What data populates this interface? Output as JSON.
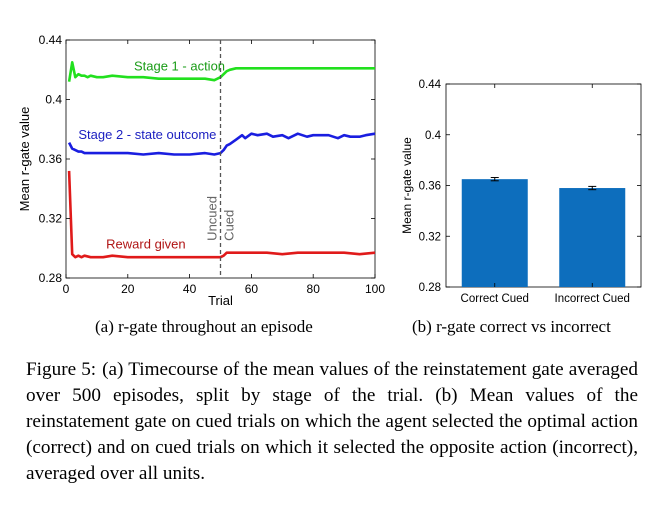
{
  "figure": {
    "label": "Figure 5:",
    "caption": "(a) Timecourse of the mean values of the reinstatement gate averaged over 500 episodes, split by stage of the trial. (b) Mean values of the reinstatement gate on cued trials on which the agent selected the optimal action (correct) and on cued trials on which it selected the opposite action (incorrect), averaged over all units."
  },
  "subfigures": {
    "a": {
      "caption": "(a) r-gate throughout an episode"
    },
    "b": {
      "caption": "(b) r-gate correct vs incorrect"
    }
  },
  "chart_data": [
    {
      "type": "line",
      "xlabel": "Trial",
      "ylabel": "Mean r-gate value",
      "xlim": [
        0,
        100
      ],
      "ylim": [
        0.28,
        0.44
      ],
      "xticks": [
        0,
        20,
        40,
        60,
        80,
        100
      ],
      "yticks": [
        0.28,
        0.32,
        0.36,
        0.4,
        0.44
      ],
      "ytick_labels": [
        "0.28",
        "0.32",
        "0.36",
        "0.4",
        "0.44"
      ],
      "grid": false,
      "divider": {
        "x": 50,
        "labels": [
          "Uncued",
          "Cued"
        ]
      },
      "series": [
        {
          "name": "Stage 1 - action",
          "color": "#22e01e",
          "x": [
            1,
            2,
            3,
            4,
            5,
            6,
            7,
            8,
            10,
            12,
            15,
            20,
            25,
            30,
            35,
            40,
            45,
            48,
            50,
            51,
            52,
            53,
            55,
            58,
            60,
            65,
            70,
            75,
            80,
            85,
            90,
            95,
            100
          ],
          "y": [
            0.412,
            0.425,
            0.415,
            0.417,
            0.416,
            0.416,
            0.415,
            0.416,
            0.415,
            0.415,
            0.416,
            0.415,
            0.415,
            0.414,
            0.414,
            0.414,
            0.414,
            0.413,
            0.415,
            0.417,
            0.419,
            0.42,
            0.421,
            0.421,
            0.421,
            0.421,
            0.421,
            0.421,
            0.421,
            0.421,
            0.421,
            0.421,
            0.421
          ]
        },
        {
          "name": "Stage 2 - state outcome",
          "color": "#1a1ee0",
          "x": [
            1,
            2,
            3,
            4,
            5,
            6,
            8,
            10,
            12,
            15,
            20,
            25,
            30,
            35,
            40,
            45,
            48,
            50,
            51,
            52,
            53,
            55,
            57,
            58,
            60,
            62,
            65,
            67,
            70,
            72,
            75,
            78,
            80,
            85,
            88,
            90,
            92,
            95,
            97,
            100
          ],
          "y": [
            0.371,
            0.367,
            0.366,
            0.365,
            0.365,
            0.364,
            0.364,
            0.364,
            0.364,
            0.364,
            0.364,
            0.363,
            0.364,
            0.363,
            0.363,
            0.364,
            0.363,
            0.364,
            0.366,
            0.369,
            0.37,
            0.373,
            0.376,
            0.374,
            0.377,
            0.376,
            0.377,
            0.375,
            0.376,
            0.374,
            0.377,
            0.375,
            0.376,
            0.376,
            0.374,
            0.376,
            0.375,
            0.375,
            0.376,
            0.377
          ]
        },
        {
          "name": "Reward given",
          "color": "#e01a1a",
          "x": [
            1,
            2,
            3,
            4,
            5,
            6,
            8,
            10,
            12,
            15,
            20,
            25,
            30,
            35,
            40,
            45,
            48,
            50,
            51,
            52,
            55,
            60,
            65,
            70,
            75,
            80,
            85,
            90,
            95,
            100
          ],
          "y": [
            0.352,
            0.296,
            0.294,
            0.295,
            0.294,
            0.295,
            0.294,
            0.294,
            0.294,
            0.295,
            0.294,
            0.294,
            0.294,
            0.294,
            0.294,
            0.294,
            0.294,
            0.294,
            0.295,
            0.297,
            0.297,
            0.297,
            0.297,
            0.296,
            0.297,
            0.297,
            0.297,
            0.297,
            0.296,
            0.297
          ]
        }
      ]
    },
    {
      "type": "bar",
      "categories": [
        "Correct Cued",
        "Incorrect Cued"
      ],
      "values": [
        0.365,
        0.358
      ],
      "errors": [
        0.0005,
        0.0005
      ],
      "ylabel": "Mean r-gate value",
      "ylim": [
        0.28,
        0.44
      ],
      "yticks": [
        0.28,
        0.32,
        0.36,
        0.4,
        0.44
      ],
      "ytick_labels": [
        "0.28",
        "0.32",
        "0.36",
        "0.4",
        "0.44"
      ],
      "bar_color": "#0d6ebd",
      "grid": false
    }
  ]
}
